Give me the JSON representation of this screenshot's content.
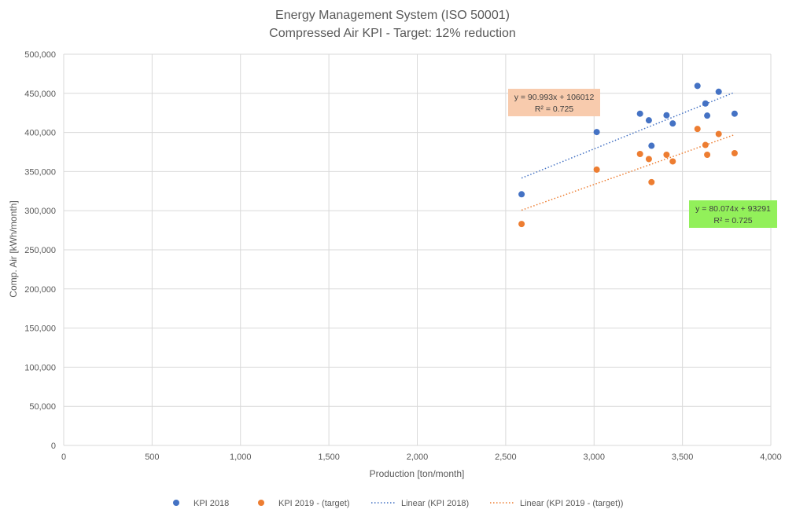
{
  "chart_data": {
    "type": "scatter",
    "title": "Energy Management System (ISO 50001)",
    "subtitle": "Compressed Air KPI - Target: 12% reduction",
    "xlabel": "Production [ton/month]",
    "ylabel": "Comp. Air [kWh/month]",
    "xlim": [
      0,
      4000
    ],
    "ylim": [
      0,
      500000
    ],
    "x_ticks": [
      0,
      500,
      1000,
      1500,
      2000,
      2500,
      3000,
      3500,
      4000
    ],
    "x_tick_labels": [
      "0",
      "500",
      "1,000",
      "1,500",
      "2,000",
      "2,500",
      "3,000",
      "3,500",
      "4,000"
    ],
    "y_ticks": [
      0,
      50000,
      100000,
      150000,
      200000,
      250000,
      300000,
      350000,
      400000,
      450000,
      500000
    ],
    "y_tick_labels": [
      "0",
      "50,000",
      "100,000",
      "150,000",
      "200,000",
      "250,000",
      "300,000",
      "350,000",
      "400,000",
      "450,000",
      "500,000"
    ],
    "grid": true,
    "legend_position": "bottom",
    "series": [
      {
        "name": "KPI 2018",
        "color": "#4472C4",
        "points": [
          [
            2590,
            321000
          ],
          [
            3015,
            400500
          ],
          [
            3260,
            424000
          ],
          [
            3310,
            415500
          ],
          [
            3325,
            383000
          ],
          [
            3410,
            422000
          ],
          [
            3445,
            411500
          ],
          [
            3585,
            459500
          ],
          [
            3630,
            437000
          ],
          [
            3640,
            421500
          ],
          [
            3705,
            452000
          ],
          [
            3795,
            424000
          ]
        ]
      },
      {
        "name": "KPI 2019 - (target)",
        "color": "#ED7D31",
        "points": [
          [
            2590,
            283000
          ],
          [
            3015,
            352500
          ],
          [
            3260,
            372500
          ],
          [
            3310,
            366000
          ],
          [
            3325,
            336500
          ],
          [
            3410,
            371500
          ],
          [
            3445,
            363000
          ],
          [
            3585,
            404500
          ],
          [
            3630,
            384000
          ],
          [
            3640,
            371500
          ],
          [
            3705,
            398000
          ],
          [
            3795,
            373500
          ]
        ]
      }
    ],
    "trendlines": [
      {
        "name": "Linear (KPI 2018)",
        "color": "#4472C4",
        "x_range": [
          2590,
          3795
        ],
        "slope": 90.993,
        "intercept": 106012,
        "label_line1": "y = 90.993x + 106012",
        "label_line2": "R² = 0.725",
        "label_bg": "#F8CBAD"
      },
      {
        "name": "Linear (KPI 2019 - (target))",
        "color": "#ED7D31",
        "x_range": [
          2590,
          3795
        ],
        "slope": 80.074,
        "intercept": 93291,
        "label_line1": "y = 80.074x + 93291",
        "label_line2": "R² = 0.725",
        "label_bg": "#92F05A"
      }
    ]
  }
}
